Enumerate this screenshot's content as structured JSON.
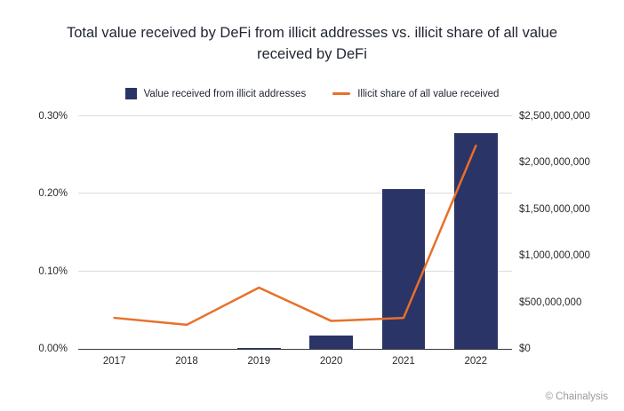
{
  "footer": "© Chainalysis",
  "chart_data": {
    "type": "bar+line",
    "title": "Total value received by DeFi from illicit addresses vs. illicit share of all value received by DeFi",
    "categories": [
      "2017",
      "2018",
      "2019",
      "2020",
      "2021",
      "2022"
    ],
    "series": [
      {
        "name": "Value received from illicit addresses",
        "type": "bar",
        "axis": "right",
        "color": "#2b3467",
        "values": [
          0,
          0,
          10000000,
          140000000,
          1720000000,
          2320000000
        ]
      },
      {
        "name": "Illicit share of all value received",
        "type": "line",
        "axis": "left",
        "color": "#e8702a",
        "values": [
          0.04,
          0.031,
          0.079,
          0.036,
          0.04,
          0.262
        ]
      }
    ],
    "left_axis": {
      "unit": "percent",
      "min": 0,
      "max": 0.3,
      "tick_step": 0.1,
      "ticks": [
        "0.00%",
        "0.10%",
        "0.20%",
        "0.30%"
      ]
    },
    "right_axis": {
      "unit": "USD",
      "min": 0,
      "max": 2500000000,
      "tick_step": 500000000,
      "ticks": [
        "$0",
        "$500,000,000",
        "$1,000,000,000",
        "$1,500,000,000",
        "$2,000,000,000",
        "$2,500,000,000"
      ]
    },
    "grid": true,
    "legend_position": "top"
  }
}
